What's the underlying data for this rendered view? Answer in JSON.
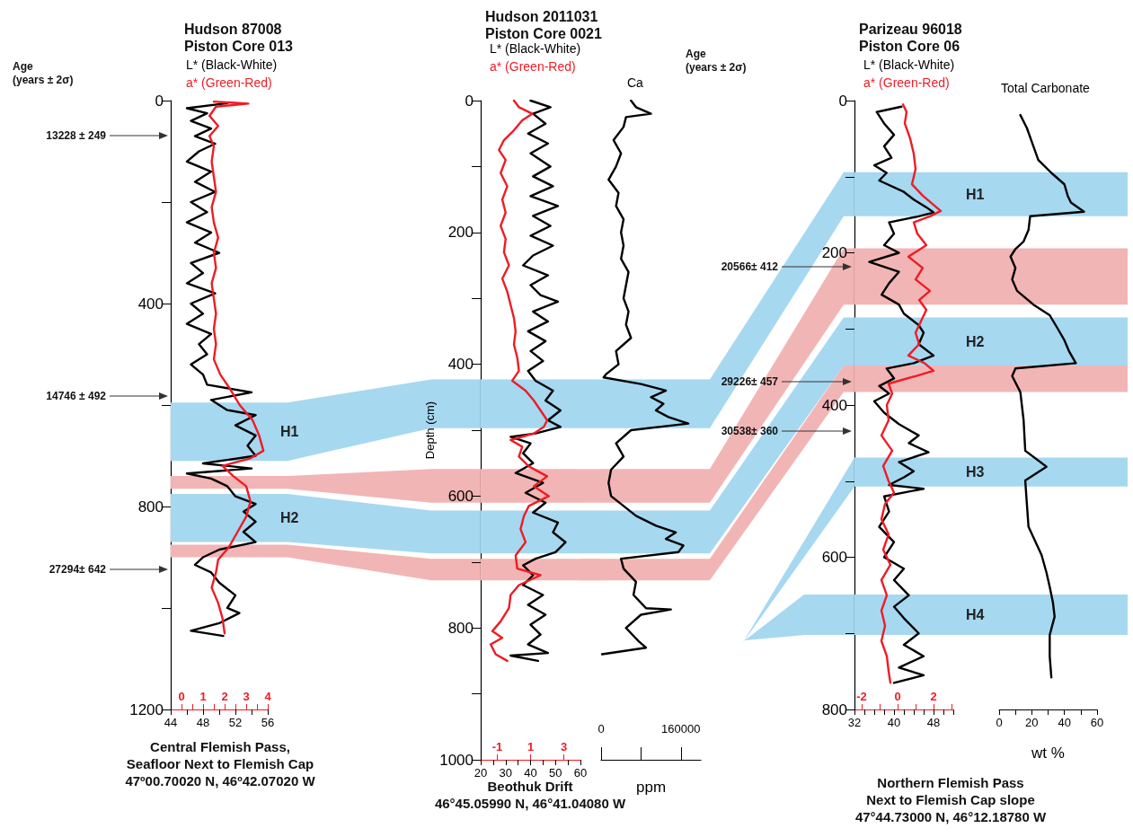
{
  "chart_data": [
    {
      "type": "line",
      "title": "Hudson 87008\nPiston Core 013",
      "subtitle": "Central Flemish Pass,\nSeafloor Next to Flemish Cap\n47º00.70020 N, 46º42.07020 W",
      "legend": "top",
      "marker": "none",
      "line_style": "solid",
      "grid": false,
      "ylim": [
        1200,
        0
      ],
      "yticks": [
        0,
        {
          "value": 200,
          "label": null
        },
        400,
        {
          "value": 600,
          "label": null
        },
        800,
        {
          "value": 1000,
          "label": null
        },
        1200
      ],
      "xlim": [
        44,
        56
      ],
      "xticks": [
        44,
        {
          "value": 46,
          "label": null
        },
        48,
        {
          "value": 50,
          "label": null
        },
        52,
        {
          "value": 54,
          "label": null
        },
        56
      ],
      "x2lim": [
        -0.5,
        4
      ],
      "x2ticks": [
        0,
        {
          "value": 0.5,
          "label": null
        },
        1,
        {
          "value": 1.5,
          "label": null
        },
        2,
        {
          "value": 2.5,
          "label": null
        },
        3,
        {
          "value": 3.5,
          "label": null
        },
        4
      ],
      "annotations": [
        "Age\n(years ± 2σ)",
        "13228 ± 249",
        "14746 ± 492",
        "27294± 642"
      ],
      "bands": [
        {
          "axis": "y",
          "from": 595,
          "to": 710,
          "label": "H1",
          "color": "#a6d8f0"
        },
        {
          "axis": "y",
          "from": 740,
          "to": 765,
          "color": "#f2b5b5"
        },
        {
          "axis": "y",
          "from": 775,
          "to": 870,
          "label": "H2",
          "color": "#a6d8f0"
        },
        {
          "axis": "y",
          "from": 875,
          "to": 900,
          "color": "#f2b5b5"
        }
      ],
      "series": [
        {
          "name": "L* (Black-White)",
          "color": "#000000",
          "x": [
            51,
            46,
            48.5,
            46.5,
            49,
            47,
            49.5,
            47.5,
            46,
            49,
            47,
            49.5,
            46.5,
            48.5,
            46,
            49,
            47,
            50,
            46.5,
            48,
            46,
            49.5,
            46.5,
            48,
            46,
            49,
            47.5,
            48.5,
            46.5,
            48,
            48.5,
            54,
            49,
            51,
            54.5,
            52,
            54.5,
            53.5,
            54.5,
            48,
            54,
            46,
            49,
            51,
            52,
            54.5,
            53,
            54.5,
            53,
            54.5,
            50,
            48,
            47,
            49,
            50,
            52,
            51,
            52.5,
            50,
            46.5,
            50.5
          ],
          "values": [
            5,
            15,
            25,
            40,
            55,
            70,
            85,
            100,
            120,
            140,
            160,
            180,
            200,
            220,
            240,
            260,
            280,
            300,
            320,
            340,
            360,
            380,
            400,
            420,
            440,
            460,
            480,
            500,
            520,
            540,
            560,
            575,
            590,
            610,
            620,
            640,
            660,
            680,
            700,
            715,
            725,
            735,
            745,
            760,
            780,
            795,
            810,
            830,
            850,
            870,
            885,
            900,
            915,
            930,
            950,
            975,
            1000,
            1010,
            1030,
            1045,
            1055
          ]
        },
        {
          "name": "a* (Green-Red)",
          "color": "#ee1c25",
          "axis": "x2",
          "x": [
            1.5,
            3.1,
            1.6,
            1.3,
            1.7,
            1.3,
            1.5,
            1.4,
            1.5,
            1.6,
            1.4,
            1.5,
            1.7,
            1.5,
            1.6,
            1.4,
            1.5,
            1.6,
            1.5,
            1.6,
            1.5,
            1.8,
            2.2,
            2.7,
            3.3,
            3.6,
            3.8,
            3.2,
            1.9,
            2.4,
            3.0,
            3.2,
            3.0,
            2.6,
            2.2,
            1.7,
            1.6,
            1.4,
            1.7,
            1.9,
            2.0
          ],
          "values": [
            2,
            6,
            12,
            30,
            50,
            70,
            90,
            120,
            150,
            180,
            210,
            240,
            270,
            300,
            330,
            360,
            390,
            420,
            450,
            480,
            510,
            540,
            565,
            600,
            630,
            660,
            690,
            705,
            720,
            740,
            760,
            790,
            820,
            850,
            880,
            905,
            930,
            960,
            990,
            1020,
            1050
          ]
        }
      ]
    },
    {
      "type": "line",
      "title": "Hudson 2011031\nPiston Core 0021",
      "subtitle": "Beothuk Drift\n46°45.05990 N, 46°41.04080 W",
      "ylabel": "Depth (cm)",
      "legend": "top",
      "marker": "none",
      "line_style": "solid",
      "grid": false,
      "ylim": [
        1000,
        0
      ],
      "yticks": [
        0,
        {
          "value": 100,
          "label": null
        },
        200,
        {
          "value": 300,
          "label": null
        },
        400,
        {
          "value": 500,
          "label": null
        },
        600,
        {
          "value": 700,
          "label": null
        },
        800,
        {
          "value": 900,
          "label": null
        },
        1000
      ],
      "xlim": [
        20,
        60
      ],
      "xticks": [
        20,
        {
          "value": 25,
          "label": null
        },
        30,
        {
          "value": 35,
          "label": null
        },
        40,
        {
          "value": 45,
          "label": null
        },
        50,
        {
          "value": 55,
          "label": null
        },
        60
      ],
      "x2lim": [
        -2,
        4
      ],
      "x2ticks": [
        -1,
        1,
        3
      ],
      "bands": [
        {
          "axis": "y",
          "from": 423,
          "to": 497,
          "color": "#a6d8f0"
        },
        {
          "axis": "y",
          "from": 559,
          "to": 610,
          "color": "#f2b5b5"
        },
        {
          "axis": "y",
          "from": 622,
          "to": 687,
          "color": "#a6d8f0"
        },
        {
          "axis": "y",
          "from": 695,
          "to": 728,
          "color": "#f2b5b5"
        }
      ],
      "series": [
        {
          "name": "L* (Black-White)",
          "color": "#000000",
          "x": [
            40,
            48,
            41,
            46,
            39,
            47,
            40,
            48,
            41,
            49,
            40,
            51,
            41,
            48,
            40,
            49,
            41,
            37,
            47,
            40,
            44,
            51,
            41,
            47,
            39,
            46,
            40,
            45,
            39,
            42,
            49,
            46,
            52,
            47,
            52,
            42,
            32,
            40,
            37,
            41,
            34,
            45,
            38,
            46,
            41,
            51,
            49,
            54,
            50,
            42,
            37,
            41,
            37,
            45,
            39,
            46,
            40,
            44,
            39,
            47,
            32,
            43
          ],
          "values": [
            0,
            10,
            20,
            35,
            50,
            65,
            80,
            100,
            115,
            130,
            145,
            160,
            175,
            190,
            205,
            220,
            235,
            250,
            265,
            280,
            295,
            305,
            320,
            335,
            350,
            365,
            380,
            395,
            410,
            425,
            440,
            455,
            470,
            485,
            495,
            505,
            510,
            520,
            535,
            550,
            565,
            580,
            595,
            610,
            625,
            640,
            655,
            670,
            685,
            695,
            705,
            720,
            735,
            750,
            765,
            780,
            795,
            810,
            825,
            838,
            842,
            850
          ]
        },
        {
          "name": "a* (Green-Red)",
          "color": "#ee1c25",
          "axis": "x2",
          "x": [
            0.0,
            0.3,
            1.1,
            0.5,
            0.0,
            -0.6,
            -0.9,
            -0.5,
            -0.8,
            -0.4,
            -0.7,
            -0.5,
            -0.8,
            -0.5,
            -0.6,
            -0.3,
            -0.7,
            -0.4,
            -0.2,
            0.0,
            0.1,
            0.0,
            0.2,
            0.3,
            -0.1,
            0.7,
            1.2,
            1.6,
            2.0,
            1.8,
            1.2,
            -0.2,
            0.5,
            0.3,
            0.9,
            2.0,
            1.2,
            2.1,
            0.9,
            0.6,
            0.4,
            0.7,
            0.1,
            0.2,
            1.6,
            0.3,
            -0.2,
            -0.3,
            -0.8,
            -1.3,
            -0.7,
            -1.4,
            -1.1,
            -0.4
          ],
          "values": [
            0,
            10,
            20,
            30,
            45,
            60,
            75,
            90,
            110,
            130,
            150,
            170,
            190,
            210,
            230,
            250,
            270,
            290,
            310,
            330,
            350,
            370,
            390,
            410,
            425,
            440,
            455,
            470,
            485,
            495,
            505,
            515,
            525,
            540,
            555,
            570,
            585,
            600,
            615,
            630,
            650,
            670,
            690,
            710,
            720,
            735,
            750,
            770,
            790,
            805,
            815,
            825,
            840,
            850
          ]
        }
      ]
    },
    {
      "type": "line",
      "xlabel": "ppm",
      "legend": "top",
      "marker": "none",
      "line_style": "solid",
      "grid": false,
      "tick_labels": "x",
      "ylim": [
        1000,
        0
      ],
      "xlim": [
        0,
        200000
      ],
      "xticks": [
        0,
        {
          "value": 80000,
          "label": null
        },
        160000
      ],
      "bands": [
        {
          "axis": "y",
          "from": 423,
          "to": 497,
          "color": "#a6d8f0"
        },
        {
          "axis": "y",
          "from": 559,
          "to": 610,
          "color": "#f2b5b5"
        },
        {
          "axis": "y",
          "from": 622,
          "to": 687,
          "color": "#a6d8f0"
        },
        {
          "axis": "y",
          "from": 695,
          "to": 728,
          "color": "#f2b5b5"
        }
      ],
      "series": [
        {
          "name": "Ca",
          "color": "#000000",
          "x": [
            60000,
            70000,
            100000,
            50000,
            45000,
            25000,
            40000,
            30000,
            15000,
            35000,
            30000,
            45000,
            40000,
            45000,
            40000,
            55000,
            50000,
            45000,
            55000,
            50000,
            60000,
            30000,
            35000,
            10000,
            5000,
            80000,
            130000,
            100000,
            125000,
            110000,
            135000,
            175000,
            60000,
            30000,
            45000,
            20000,
            15000,
            20000,
            45000,
            70000,
            110000,
            150000,
            130000,
            165000,
            155000,
            40000,
            45000,
            70000,
            65000,
            90000,
            140000,
            80000,
            50000,
            75000,
            90000,
            2000
          ],
          "values": [
            0,
            10,
            20,
            25,
            40,
            60,
            80,
            100,
            120,
            140,
            160,
            180,
            200,
            220,
            240,
            260,
            280,
            300,
            320,
            340,
            360,
            380,
            400,
            415,
            420,
            430,
            440,
            450,
            460,
            470,
            480,
            490,
            500,
            520,
            540,
            560,
            580,
            600,
            615,
            630,
            645,
            655,
            665,
            675,
            685,
            695,
            710,
            730,
            750,
            770,
            772,
            780,
            800,
            820,
            830,
            840
          ]
        }
      ]
    },
    {
      "type": "line",
      "title": "Parizeau 96018\nPiston Core 06",
      "subtitle": "Northern Flemish Pass\nNext to Flemish Cap slope\n47°44.73000 N, 46°12.18780 W",
      "legend": "top",
      "marker": "none",
      "line_style": "solid",
      "grid": false,
      "ylim": [
        800,
        0
      ],
      "yticks": [
        0,
        {
          "value": 100,
          "label": null
        },
        200,
        {
          "value": 300,
          "label": null
        },
        400,
        {
          "value": 500,
          "label": null
        },
        600,
        {
          "value": 700,
          "label": null
        },
        800
      ],
      "xlim": [
        32,
        52
      ],
      "xticks": [
        32,
        {
          "value": 34,
          "label": null
        },
        {
          "value": 36,
          "label": null
        },
        {
          "value": 38,
          "label": null
        },
        40,
        {
          "value": 42,
          "label": null
        },
        {
          "value": 44,
          "label": null
        },
        {
          "value": 46,
          "label": null
        },
        48,
        {
          "value": 50,
          "label": null
        },
        {
          "value": 52,
          "label": null
        }
      ],
      "x2lim": [
        -2.4,
        3.1
      ],
      "x2ticks": [
        -2,
        {
          "value": -1,
          "label": null
        },
        0,
        {
          "value": 1,
          "label": null
        },
        2,
        {
          "value": 3,
          "label": null
        }
      ],
      "annotations": [
        "Age\n(years ± 2σ)",
        "20566± 412",
        "29226± 457",
        "30538± 360"
      ],
      "bands": [
        {
          "axis": "y",
          "from": 94,
          "to": 152,
          "label": "H1",
          "color": "#a6d8f0"
        },
        {
          "axis": "y",
          "from": 194,
          "to": 268,
          "color": "#f2b5b5"
        },
        {
          "axis": "y",
          "from": 285,
          "to": 348,
          "label": "H2",
          "color": "#a6d8f0"
        },
        {
          "axis": "y",
          "from": 348,
          "to": 383,
          "color": "#f2b5b5"
        },
        {
          "axis": "y",
          "from": 469,
          "to": 507,
          "label": "H3",
          "color": "#a6d8f0"
        },
        {
          "axis": "y",
          "from": 649,
          "to": 702,
          "label": "H4",
          "color": "#a6d8f0"
        }
      ],
      "series": [
        {
          "name": "L* (Black-White)",
          "color": "#000000",
          "x": [
            41.5,
            36.5,
            38,
            40,
            38,
            39.5,
            36,
            38.5,
            37,
            42,
            44,
            46.5,
            48,
            45,
            39,
            40,
            38,
            41,
            35,
            41,
            39,
            37.5,
            41,
            42,
            45,
            46,
            45,
            48,
            44,
            38.5,
            40,
            37,
            39,
            36,
            38,
            41,
            45,
            43,
            47,
            41,
            44,
            42,
            39,
            46,
            38,
            39,
            37,
            40,
            38,
            42,
            40,
            43,
            40,
            42,
            45,
            42,
            46,
            41,
            46,
            40
          ],
          "values": [
            8,
            15,
            30,
            45,
            60,
            75,
            85,
            95,
            105,
            120,
            130,
            140,
            147,
            152,
            160,
            175,
            190,
            200,
            212,
            225,
            240,
            255,
            268,
            280,
            295,
            305,
            320,
            335,
            345,
            352,
            365,
            375,
            385,
            395,
            410,
            425,
            440,
            450,
            462,
            475,
            487,
            495,
            505,
            510,
            520,
            540,
            560,
            580,
            600,
            615,
            630,
            650,
            665,
            680,
            700,
            715,
            730,
            745,
            755,
            765
          ]
        },
        {
          "name": "a* (Green-Red)",
          "color": "#ee1c25",
          "axis": "x2",
          "x": [
            0.3,
            0.5,
            0.4,
            0.7,
            0.9,
            1.0,
            0.8,
            1.4,
            1.9,
            2.4,
            1.8,
            0.9,
            1.1,
            1.6,
            0.6,
            1.4,
            1.0,
            1.8,
            1.2,
            1.6,
            1.3,
            1.0,
            1.2,
            0.6,
            1.5,
            2.0,
            1.0,
            -0.5,
            -0.3,
            -0.6,
            -0.5,
            -0.9,
            -0.3,
            -0.8,
            -0.5,
            -0.2,
            -0.7,
            -0.9,
            -0.5,
            -0.8,
            -0.4,
            -0.9,
            -0.6,
            -0.9,
            -0.7,
            -0.9,
            -0.6,
            -0.5,
            -0.4
          ],
          "values": [
            5,
            15,
            30,
            50,
            70,
            90,
            110,
            125,
            135,
            145,
            152,
            160,
            175,
            190,
            205,
            220,
            235,
            250,
            262,
            275,
            290,
            305,
            320,
            335,
            345,
            355,
            362,
            372,
            385,
            400,
            420,
            440,
            460,
            480,
            500,
            515,
            530,
            550,
            570,
            590,
            610,
            630,
            650,
            670,
            690,
            710,
            730,
            750,
            765
          ]
        }
      ]
    },
    {
      "type": "line",
      "xlabel": "wt %",
      "legend": "top",
      "marker": "none",
      "line_style": "solid",
      "grid": false,
      "tick_labels": "x",
      "ylim": [
        800,
        0
      ],
      "xlim": [
        0,
        60
      ],
      "xticks": [
        0,
        {
          "value": 10,
          "label": null
        },
        20,
        {
          "value": 30,
          "label": null
        },
        40,
        {
          "value": 50,
          "label": null
        },
        60
      ],
      "bands": [
        {
          "axis": "y",
          "from": 94,
          "to": 152,
          "color": "#a6d8f0"
        },
        {
          "axis": "y",
          "from": 194,
          "to": 268,
          "color": "#f2b5b5"
        },
        {
          "axis": "y",
          "from": 285,
          "to": 348,
          "color": "#a6d8f0"
        },
        {
          "axis": "y",
          "from": 348,
          "to": 383,
          "color": "#f2b5b5"
        },
        {
          "axis": "y",
          "from": 469,
          "to": 507,
          "color": "#a6d8f0"
        },
        {
          "axis": "y",
          "from": 649,
          "to": 702,
          "color": "#a6d8f0"
        }
      ],
      "series": [
        {
          "name": "Total Carbonate",
          "color": "#000000",
          "x": [
            13,
            17,
            21,
            24,
            32,
            40,
            42,
            44,
            52,
            19,
            18,
            15,
            10,
            7,
            10,
            8,
            11,
            21,
            31,
            36,
            40,
            43,
            47,
            10,
            8,
            13,
            15,
            16,
            29,
            16,
            17,
            18,
            26,
            29,
            31,
            33,
            34,
            31,
            31,
            32
          ],
          "values": [
            19,
            36,
            60,
            78,
            95,
            110,
            125,
            134,
            146,
            152,
            170,
            185,
            195,
            205,
            220,
            235,
            250,
            268,
            282,
            300,
            315,
            330,
            345,
            352,
            362,
            383,
            420,
            460,
            481,
            499,
            530,
            560,
            597,
            620,
            639,
            660,
            678,
            702,
            730,
            758
          ]
        }
      ]
    }
  ]
}
